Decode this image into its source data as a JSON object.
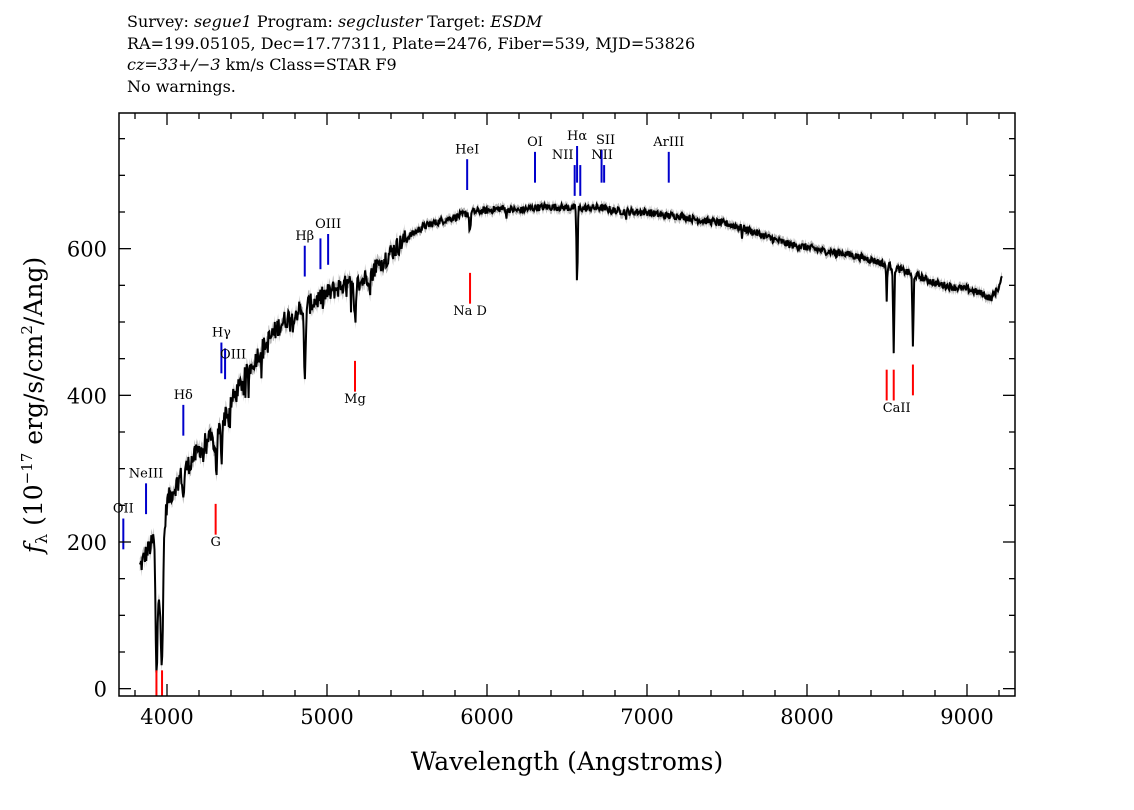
{
  "header": {
    "line1": {
      "survey_label": "Survey: ",
      "survey": "segue1",
      "program_label": " Program: ",
      "program": "segcluster",
      "target_label": " Target: ",
      "target": "ESDM"
    },
    "line2": "RA=199.05105, Dec=17.77311, Plate=2476, Fiber=539, MJD=53826",
    "line3": {
      "cz": "cz=33+/−3",
      "rest": " km/s Class=STAR F9"
    },
    "line4": "No warnings."
  },
  "chart_data": {
    "type": "line",
    "xlabel": "Wavelength (Angstroms)",
    "ylabel_parts": {
      "f": "f",
      "sub": "λ",
      "pre": " (10",
      "exp1": "−17",
      "mid": " erg/s/cm",
      "exp2": "2",
      "post": "/Ang)"
    },
    "xlim": [
      3700,
      9300
    ],
    "ylim": [
      -10,
      785
    ],
    "xticks": [
      4000,
      5000,
      6000,
      7000,
      8000,
      9000
    ],
    "yticks": [
      0,
      200,
      400,
      600
    ],
    "x_minor_step": 200,
    "y_minor_step": 50,
    "series_color": "#000000",
    "error_color": "#b8b8b8",
    "continuum": [
      [
        3830,
        165
      ],
      [
        3870,
        185
      ],
      [
        3900,
        195
      ],
      [
        3920,
        205
      ],
      [
        3940,
        150
      ],
      [
        3960,
        120
      ],
      [
        3980,
        205
      ],
      [
        4000,
        255
      ],
      [
        4050,
        275
      ],
      [
        4100,
        295
      ],
      [
        4150,
        310
      ],
      [
        4200,
        325
      ],
      [
        4250,
        340
      ],
      [
        4300,
        338
      ],
      [
        4350,
        370
      ],
      [
        4400,
        390
      ],
      [
        4450,
        410
      ],
      [
        4500,
        430
      ],
      [
        4550,
        450
      ],
      [
        4600,
        465
      ],
      [
        4650,
        480
      ],
      [
        4700,
        495
      ],
      [
        4750,
        505
      ],
      [
        4800,
        512
      ],
      [
        4850,
        520
      ],
      [
        4900,
        525
      ],
      [
        4950,
        532
      ],
      [
        5000,
        538
      ],
      [
        5050,
        545
      ],
      [
        5100,
        550
      ],
      [
        5150,
        550
      ],
      [
        5200,
        552
      ],
      [
        5250,
        562
      ],
      [
        5300,
        575
      ],
      [
        5350,
        585
      ],
      [
        5400,
        595
      ],
      [
        5450,
        605
      ],
      [
        5500,
        615
      ],
      [
        5600,
        630
      ],
      [
        5700,
        637
      ],
      [
        5800,
        643
      ],
      [
        5900,
        650
      ],
      [
        6000,
        652
      ],
      [
        6100,
        655
      ],
      [
        6200,
        652
      ],
      [
        6300,
        656
      ],
      [
        6400,
        657
      ],
      [
        6500,
        656
      ],
      [
        6600,
        655
      ],
      [
        6700,
        656
      ],
      [
        6800,
        652
      ],
      [
        6900,
        650
      ],
      [
        7000,
        650
      ],
      [
        7100,
        645
      ],
      [
        7200,
        645
      ],
      [
        7300,
        640
      ],
      [
        7400,
        637
      ],
      [
        7500,
        634
      ],
      [
        7600,
        628
      ],
      [
        7700,
        620
      ],
      [
        7800,
        612
      ],
      [
        7900,
        605
      ],
      [
        8000,
        602
      ],
      [
        8100,
        597
      ],
      [
        8200,
        595
      ],
      [
        8300,
        590
      ],
      [
        8400,
        585
      ],
      [
        8500,
        578
      ],
      [
        8600,
        570
      ],
      [
        8700,
        562
      ],
      [
        8800,
        553
      ],
      [
        8900,
        548
      ],
      [
        9000,
        545
      ],
      [
        9100,
        538
      ],
      [
        9150,
        532
      ],
      [
        9200,
        548
      ],
      [
        9220,
        560
      ]
    ],
    "absorption": [
      {
        "x": 3934,
        "depth": 150,
        "width": 8
      },
      {
        "x": 3969,
        "depth": 130,
        "width": 8
      },
      {
        "x": 4102,
        "depth": 40,
        "width": 6
      },
      {
        "x": 4227,
        "depth": 20,
        "width": 5
      },
      {
        "x": 4308,
        "depth": 50,
        "width": 6
      },
      {
        "x": 4340,
        "depth": 55,
        "width": 6
      },
      {
        "x": 4384,
        "depth": 20,
        "width": 5
      },
      {
        "x": 4861,
        "depth": 110,
        "width": 7
      },
      {
        "x": 5172,
        "depth": 50,
        "width": 7
      },
      {
        "x": 5270,
        "depth": 18,
        "width": 5
      },
      {
        "x": 5328,
        "depth": 12,
        "width": 5
      },
      {
        "x": 5893,
        "depth": 28,
        "width": 6
      },
      {
        "x": 6122,
        "depth": 12,
        "width": 4
      },
      {
        "x": 6563,
        "depth": 105,
        "width": 5
      },
      {
        "x": 6868,
        "depth": 8,
        "width": 4
      },
      {
        "x": 7595,
        "depth": 12,
        "width": 4
      },
      {
        "x": 8183,
        "depth": 8,
        "width": 4
      },
      {
        "x": 8498,
        "depth": 50,
        "width": 4
      },
      {
        "x": 8542,
        "depth": 115,
        "width": 5
      },
      {
        "x": 8662,
        "depth": 100,
        "width": 5
      }
    ],
    "emission_lines": [
      {
        "label": "OII",
        "x": 3727,
        "ymin": 190,
        "ymax": 232,
        "label_y": 240
      },
      {
        "label": "NeIII",
        "x": 3869,
        "ymin": 238,
        "ymax": 280,
        "label_y": 288
      },
      {
        "label": "Hδ",
        "x": 4102,
        "ymin": 345,
        "ymax": 387,
        "label_y": 395
      },
      {
        "label": "Hγ",
        "x": 4340,
        "ymin": 430,
        "ymax": 472,
        "label_y": 480
      },
      {
        "label": "OIII",
        "x": 4363,
        "ymin": 422,
        "ymax": 464,
        "label_y": 450,
        "label_dx": 8
      },
      {
        "label": "Hβ",
        "x": 4861,
        "ymin": 562,
        "ymax": 604,
        "label_y": 612
      },
      {
        "label": "OIII",
        "x": 4959,
        "ymin": 572,
        "ymax": 614,
        "label_y": 0,
        "hide_label": true
      },
      {
        "label": "OIII",
        "x": 5007,
        "ymin": 578,
        "ymax": 620,
        "label_y": 628
      },
      {
        "label": "HeI",
        "x": 5876,
        "ymin": 680,
        "ymax": 722,
        "label_y": 730
      },
      {
        "label": "OI",
        "x": 6300,
        "ymin": 690,
        "ymax": 732,
        "label_y": 740
      },
      {
        "label": "NII",
        "x": 6548,
        "ymin": 672,
        "ymax": 714,
        "label_y": 722,
        "label_dx": -12
      },
      {
        "label": "Hα",
        "x": 6563,
        "ymin": 690,
        "ymax": 740,
        "label_y": 748
      },
      {
        "label": "NII",
        "x": 6583,
        "ymin": 672,
        "ymax": 714,
        "label_y": 0,
        "hide_label": true
      },
      {
        "label": "SII",
        "x": 6716,
        "ymin": 690,
        "ymax": 735,
        "label_y": 743,
        "label_dx": 4
      },
      {
        "label": "NII",
        "x": 6732,
        "ymin": 690,
        "ymax": 714,
        "label_y": 722,
        "label_dx": -2
      },
      {
        "label": "ArIII",
        "x": 7136,
        "ymin": 690,
        "ymax": 732,
        "label_y": 740
      }
    ],
    "absorption_markers": [
      {
        "label": "",
        "x": 3934,
        "ymin": -10,
        "ymax": 25
      },
      {
        "label": "",
        "x": 3969,
        "ymin": -10,
        "ymax": 25
      },
      {
        "label": "G",
        "x": 4304,
        "ymin": 210,
        "ymax": 252,
        "label_y": 200
      },
      {
        "label": "Mg",
        "x": 5175,
        "ymin": 405,
        "ymax": 447,
        "label_y": 395
      },
      {
        "label": "Na D",
        "x": 5894,
        "ymin": 525,
        "ymax": 567,
        "label_y": 515
      },
      {
        "label": "CaII",
        "x": 8498,
        "ymin": 393,
        "ymax": 435,
        "label_y": 383,
        "label_dx": 10
      },
      {
        "label": "",
        "x": 8542,
        "ymin": 393,
        "ymax": 435
      },
      {
        "label": "",
        "x": 8662,
        "ymin": 400,
        "ymax": 442
      }
    ],
    "emission_color": "#0000cc",
    "absorption_color": "#ff0000"
  }
}
